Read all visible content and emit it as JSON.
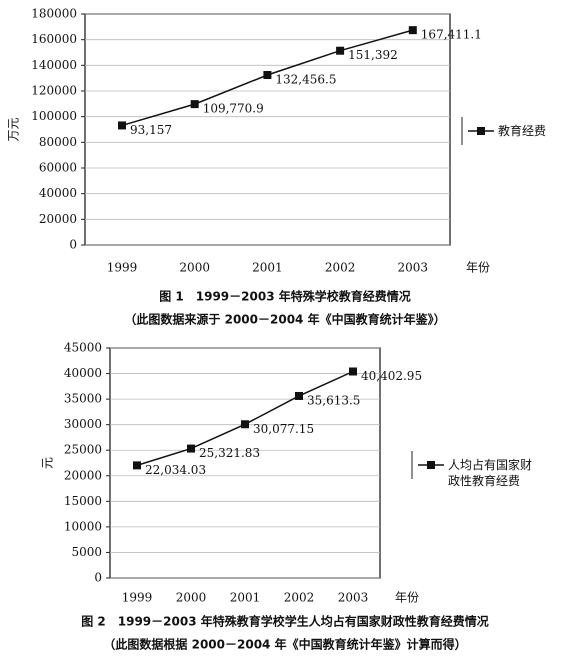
{
  "chart_data": [
    {
      "type": "line",
      "title": "图 1　1999－2003 年特殊学校教育经费情况",
      "subtitle": "（此图数据来源于 2000－2004 年《中国教育统计年鉴》）",
      "y_label": "万元",
      "x_label": "年份",
      "categories": [
        "1999",
        "2000",
        "2001",
        "2002",
        "2003"
      ],
      "series": [
        {
          "name": "教育经费",
          "color": "#111111",
          "values": [
            93157,
            109770.9,
            132456.5,
            151392,
            167411.1
          ],
          "value_labels": [
            "93,157",
            "109,770.9",
            "132,456.5",
            "151,392",
            "167,411.1"
          ]
        }
      ],
      "ylim": [
        0,
        180000
      ],
      "yticks": [
        0,
        20000,
        40000,
        60000,
        80000,
        100000,
        120000,
        140000,
        160000,
        180000
      ],
      "grid": true,
      "legend": "right"
    },
    {
      "type": "line",
      "title": "图 2　1999－2003 年特殊教育学校学生人均占有国家财政性教育经费情况",
      "subtitle": "（此图数据根据 2000－2004 年《中国教育统计年鉴》计算而得）",
      "y_label": "元",
      "x_label": "年份",
      "categories": [
        "1999",
        "2000",
        "2001",
        "2002",
        "2003"
      ],
      "series": [
        {
          "name": "人均占有国家财政性教育经费",
          "color": "#111111",
          "values": [
            22034.03,
            25321.83,
            30077.15,
            35613.5,
            40402.95
          ],
          "value_labels": [
            "22,034.03",
            "25,321.83",
            "30,077.15",
            "35,613.5",
            "40,402.95"
          ]
        }
      ],
      "ylim": [
        0,
        45000
      ],
      "yticks": [
        0,
        5000,
        10000,
        15000,
        20000,
        25000,
        30000,
        35000,
        40000,
        45000
      ],
      "grid": true,
      "legend": "right"
    }
  ]
}
